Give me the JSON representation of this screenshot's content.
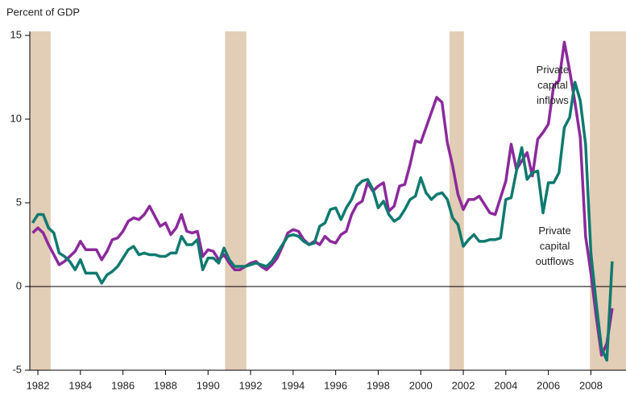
{
  "chart_data": {
    "type": "line",
    "y_axis_label": "Percent of GDP",
    "x": [
      1981.75,
      1982,
      1982.25,
      1982.5,
      1982.75,
      1983,
      1983.25,
      1983.5,
      1983.75,
      1984,
      1984.25,
      1984.5,
      1984.75,
      1985,
      1985.25,
      1985.5,
      1985.75,
      1986,
      1986.25,
      1986.5,
      1986.75,
      1987,
      1987.25,
      1987.5,
      1987.75,
      1988,
      1988.25,
      1988.5,
      1988.75,
      1989,
      1989.25,
      1989.5,
      1989.75,
      1990,
      1990.25,
      1990.5,
      1990.75,
      1991,
      1991.25,
      1991.5,
      1991.75,
      1992,
      1992.25,
      1992.5,
      1992.75,
      1993,
      1993.25,
      1993.5,
      1993.75,
      1994,
      1994.25,
      1994.5,
      1994.75,
      1995,
      1995.25,
      1995.5,
      1995.75,
      1996,
      1996.25,
      1996.5,
      1996.75,
      1997,
      1997.25,
      1997.5,
      1997.75,
      1998,
      1998.25,
      1998.5,
      1998.75,
      1999,
      1999.25,
      1999.5,
      1999.75,
      2000,
      2000.25,
      2000.5,
      2000.75,
      2001,
      2001.25,
      2001.5,
      2001.75,
      2002,
      2002.25,
      2002.5,
      2002.75,
      2003,
      2003.25,
      2003.5,
      2003.75,
      2004,
      2004.25,
      2004.5,
      2004.75,
      2005,
      2005.25,
      2005.5,
      2005.75,
      2006,
      2006.25,
      2006.5,
      2006.75,
      2007,
      2007.25,
      2007.5,
      2007.75,
      2008,
      2008.25,
      2008.5,
      2008.75,
      2009
    ],
    "series": [
      {
        "name": "Private capital inflows",
        "color": "#8b2a9b",
        "values": [
          3.2,
          3.5,
          3.2,
          2.5,
          1.9,
          1.3,
          1.5,
          1.8,
          2.1,
          2.7,
          2.2,
          2.2,
          2.2,
          1.6,
          2.1,
          2.8,
          2.9,
          3.3,
          3.9,
          4.1,
          4.0,
          4.3,
          4.8,
          4.2,
          3.6,
          3.8,
          3.1,
          3.5,
          4.3,
          3.3,
          3.2,
          3.3,
          1.8,
          2.2,
          2.1,
          1.6,
          1.9,
          1.4,
          1.0,
          1.0,
          1.2,
          1.4,
          1.5,
          1.2,
          1.0,
          1.3,
          1.7,
          2.4,
          3.2,
          3.4,
          3.3,
          2.8,
          2.5,
          2.7,
          2.5,
          3.0,
          2.7,
          2.6,
          3.1,
          3.3,
          4.3,
          4.9,
          5.1,
          6.2,
          5.7,
          6.0,
          6.2,
          4.5,
          4.8,
          6.0,
          6.1,
          7.3,
          8.7,
          8.6,
          9.5,
          10.4,
          11.3,
          11.0,
          8.6,
          7.2,
          5.5,
          4.6,
          5.2,
          5.2,
          5.4,
          4.9,
          4.4,
          4.3,
          5.3,
          6.3,
          8.5,
          7.0,
          7.5,
          8.0,
          6.6,
          8.8,
          9.2,
          9.7,
          12.0,
          12.3,
          14.6,
          12.9,
          11.0,
          8.9,
          3.0,
          0.8,
          -1.8,
          -4.1,
          -3.4,
          -1.3
        ]
      },
      {
        "name": "Private capital outflows",
        "color": "#0e7a6e",
        "values": [
          3.8,
          4.3,
          4.3,
          3.5,
          3.2,
          2.0,
          1.8,
          1.5,
          1.0,
          1.6,
          0.8,
          0.8,
          0.8,
          0.2,
          0.7,
          0.9,
          1.2,
          1.7,
          2.2,
          2.4,
          1.9,
          2.0,
          1.9,
          1.9,
          1.8,
          1.8,
          2.0,
          2.0,
          3.0,
          2.5,
          2.5,
          2.8,
          1.0,
          1.7,
          1.7,
          1.4,
          2.3,
          1.6,
          1.2,
          1.2,
          1.2,
          1.3,
          1.4,
          1.3,
          1.2,
          1.5,
          2.0,
          2.5,
          3.0,
          3.1,
          3.0,
          2.7,
          2.5,
          2.6,
          3.6,
          3.8,
          4.6,
          4.7,
          4.0,
          4.7,
          5.2,
          6.0,
          6.3,
          6.4,
          5.8,
          4.7,
          5.1,
          4.3,
          3.9,
          4.1,
          4.6,
          5.2,
          5.4,
          6.5,
          5.6,
          5.2,
          5.5,
          5.6,
          5.2,
          4.1,
          3.7,
          2.4,
          2.8,
          3.1,
          2.7,
          2.7,
          2.8,
          2.8,
          2.9,
          5.2,
          5.3,
          6.9,
          8.3,
          6.4,
          6.8,
          6.9,
          4.4,
          6.2,
          6.2,
          6.8,
          9.5,
          10.1,
          12.2,
          11.1,
          8.5,
          2.0,
          -1.0,
          -3.7,
          -4.4,
          1.5
        ]
      }
    ],
    "annotations": [
      {
        "lines": [
          "Private",
          "capital",
          "inflows"
        ],
        "x": 2006.2,
        "y": 12.9
      },
      {
        "lines": [
          "Private",
          "capital",
          "outflows"
        ],
        "x": 2006.3,
        "y": 3.3
      }
    ],
    "shaded_periods": [
      [
        1981.62,
        1982.6
      ],
      [
        1990.8,
        1991.8
      ],
      [
        2001.35,
        2002.03
      ],
      [
        2007.95,
        2009.65
      ]
    ],
    "shade_color": "#e2cdb6",
    "xlim": [
      1981.62,
      2009.65
    ],
    "xticks": [
      1982,
      1984,
      1986,
      1988,
      1990,
      1992,
      1994,
      1996,
      1998,
      2000,
      2002,
      2004,
      2006,
      2008
    ],
    "ylim": [
      -5,
      15
    ],
    "yticks": [
      -5,
      0,
      5,
      10,
      15
    ]
  }
}
